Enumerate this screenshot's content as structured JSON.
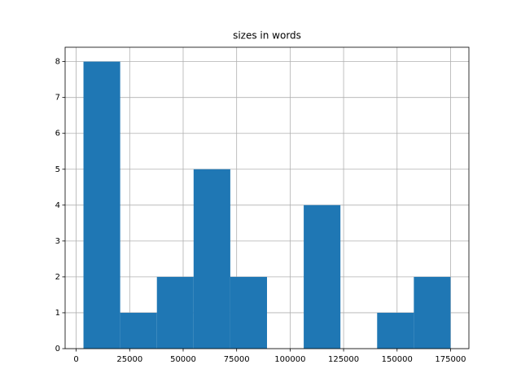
{
  "chart_data": {
    "type": "histogram",
    "title": "sizes in words",
    "bins": [
      3400,
      20560,
      37720,
      54880,
      72040,
      89200,
      106360,
      123520,
      140680,
      157840,
      175000
    ],
    "counts": [
      8,
      1,
      2,
      5,
      2,
      0,
      4,
      0,
      1,
      2
    ],
    "color": "#1f77b4",
    "xlim": [
      -5180,
      183580
    ],
    "xticks": [
      0,
      25000,
      50000,
      75000,
      100000,
      125000,
      150000,
      175000
    ],
    "ylim": [
      0,
      8.4
    ],
    "yticks": [
      0,
      1,
      2,
      3,
      4,
      5,
      6,
      7,
      8
    ],
    "grid": true
  }
}
